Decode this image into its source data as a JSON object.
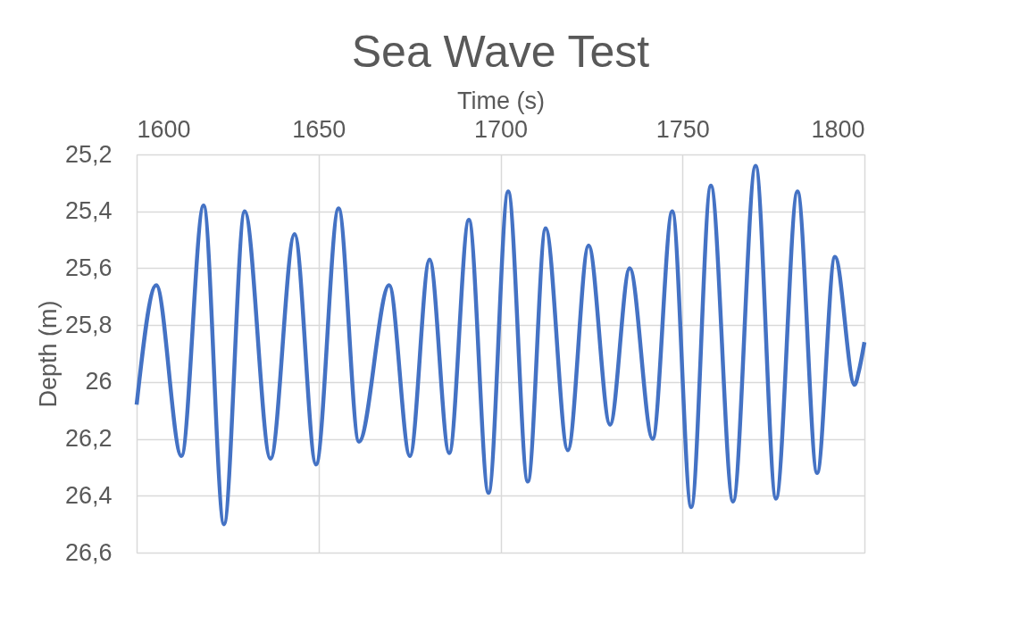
{
  "chart_data": {
    "type": "line",
    "title": "Sea Wave Test",
    "xlabel": "Time (s)",
    "ylabel": "Depth (m)",
    "x": [
      1600,
      1605.4,
      1612.3,
      1618.4,
      1624.0,
      1629.7,
      1636.8,
      1643.4,
      1649.3,
      1655.5,
      1661.1,
      1669.4,
      1675.1,
      1680.5,
      1685.9,
      1691.3,
      1696.7,
      1702.1,
      1707.5,
      1712.4,
      1718.5,
      1724.2,
      1730.1,
      1735.5,
      1741.8,
      1747.2,
      1752.4,
      1757.8,
      1763.9,
      1770.1,
      1775.7,
      1781.6,
      1787.0,
      1791.9,
      1797.3,
      1798.5,
      1800
    ],
    "series": [
      {
        "color": "#4472c4",
        "values": [
          26.08,
          25.66,
          26.26,
          25.38,
          26.5,
          25.4,
          26.27,
          25.48,
          26.29,
          25.39,
          26.21,
          25.66,
          26.26,
          25.57,
          26.25,
          25.43,
          26.39,
          25.33,
          26.35,
          25.46,
          26.24,
          25.52,
          26.15,
          25.6,
          26.2,
          25.4,
          26.44,
          25.31,
          26.42,
          25.24,
          26.41,
          25.33,
          26.32,
          25.56,
          26.01,
          25.96,
          25.86
        ]
      }
    ],
    "xlim": [
      1600,
      1800
    ],
    "xticks": [
      1600,
      1650,
      1700,
      1750,
      1800
    ],
    "ylim": [
      26.6,
      25.2
    ],
    "yticks": [
      {
        "value": 25.2,
        "label": "25,2"
      },
      {
        "value": 25.4,
        "label": "25,4"
      },
      {
        "value": 25.6,
        "label": "25,6"
      },
      {
        "value": 25.8,
        "label": "25,8"
      },
      {
        "value": 26,
        "label": "26"
      },
      {
        "value": 26.2,
        "label": "26,2"
      },
      {
        "value": 26.4,
        "label": "26,4"
      },
      {
        "value": 26.6,
        "label": "26,6"
      }
    ],
    "grid": true,
    "marker": "none",
    "line_style": "solid"
  }
}
